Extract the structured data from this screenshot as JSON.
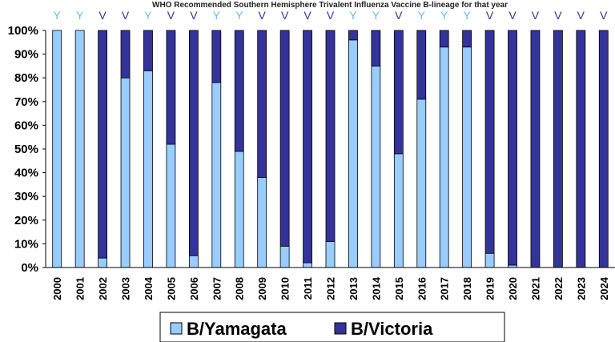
{
  "chart_data": {
    "type": "bar",
    "stacked": true,
    "title": "WHO Recommended Southern Hemisphere Trivalent Influenza Vaccine B-lineage for that year",
    "categories": [
      "2000",
      "2001",
      "2002",
      "2003",
      "2004",
      "2005",
      "2006",
      "2007",
      "2008",
      "2009",
      "2010",
      "2011",
      "2012",
      "2013",
      "2014",
      "2015",
      "2016",
      "2017",
      "2018",
      "2019",
      "2020",
      "2021",
      "2022",
      "2023",
      "2024"
    ],
    "recommended_lineage": [
      "Y",
      "Y",
      "V",
      "V",
      "Y",
      "V",
      "V",
      "Y",
      "Y",
      "V",
      "V",
      "V",
      "V",
      "Y",
      "Y",
      "V",
      "Y",
      "Y",
      "Y",
      "V",
      "V",
      "V",
      "V",
      "V",
      "V"
    ],
    "series": [
      {
        "name": "B/Yamagata",
        "color": "#99ccff",
        "values": [
          100,
          100,
          4,
          80,
          83,
          52,
          5,
          78,
          49,
          38,
          9,
          2,
          11,
          96,
          85,
          48,
          71,
          93,
          93,
          6,
          1,
          0,
          0,
          0,
          0
        ]
      },
      {
        "name": "B/Victoria",
        "color": "#333399",
        "values": [
          0,
          0,
          96,
          20,
          17,
          48,
          95,
          22,
          51,
          62,
          91,
          98,
          89,
          4,
          15,
          52,
          29,
          7,
          7,
          94,
          99,
          100,
          100,
          100,
          100
        ]
      }
    ],
    "yticks": [
      "0%",
      "10%",
      "20%",
      "30%",
      "40%",
      "50%",
      "60%",
      "70%",
      "80%",
      "90%",
      "100%"
    ],
    "ylim": [
      0,
      100
    ],
    "grid": false,
    "legend": "bottom",
    "marker_colors": {
      "Y": "#66bbee",
      "V": "#333399"
    }
  }
}
